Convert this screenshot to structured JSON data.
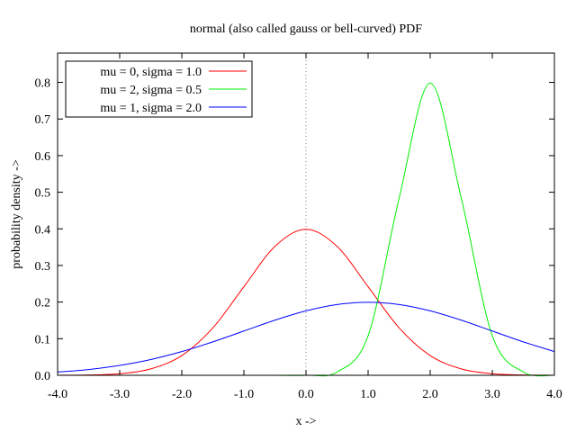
{
  "chart_data": {
    "type": "line",
    "title": "normal (also called gauss or bell-curved) PDF",
    "xlabel": "x ->",
    "ylabel": "probability density ->",
    "xlim": [
      -4.0,
      4.0
    ],
    "ylim": [
      0.0,
      0.88
    ],
    "xticks": [
      -4.0,
      -3.0,
      -2.0,
      -1.0,
      0.0,
      1.0,
      2.0,
      3.0,
      4.0
    ],
    "xtick_labels": [
      "-4.0",
      "-3.0",
      "-2.0",
      "-1.0",
      "0.0",
      "1.0",
      "2.0",
      "3.0",
      "4.0"
    ],
    "yticks": [
      0.0,
      0.1,
      0.2,
      0.3,
      0.4,
      0.5,
      0.6,
      0.7,
      0.8
    ],
    "ytick_labels": [
      "0.0",
      "0.1",
      "0.2",
      "0.3",
      "0.4",
      "0.5",
      "0.6",
      "0.7",
      "0.8"
    ],
    "grid": false,
    "legend_position": "top-left",
    "reference_line": {
      "x": 0.0,
      "style": "dotted",
      "color": "#808080"
    },
    "x": [
      -4.0,
      -3.5,
      -3.0,
      -2.5,
      -2.0,
      -1.5,
      -1.0,
      -0.5,
      0.0,
      0.5,
      1.0,
      1.5,
      2.0,
      2.5,
      3.0,
      3.5,
      4.0
    ],
    "series": [
      {
        "name": "mu = 0, sigma = 1.0",
        "color": "#ff0000",
        "values": [
          0.0001,
          0.0009,
          0.0044,
          0.0175,
          0.054,
          0.1295,
          0.242,
          0.3521,
          0.3989,
          0.3521,
          0.242,
          0.1295,
          0.054,
          0.0175,
          0.0044,
          0.0009,
          0.0001
        ]
      },
      {
        "name": "mu = 2, sigma = 0.5",
        "color": "#00ee00",
        "values": [
          0.0,
          0.0,
          0.0,
          0.0,
          0.0,
          0.0,
          0.0,
          0.0,
          0.0001,
          0.0089,
          0.108,
          0.4839,
          0.7979,
          0.4839,
          0.108,
          0.0089,
          0.0001
        ]
      },
      {
        "name": "mu = 1, sigma = 2.0",
        "color": "#0000ff",
        "values": [
          0.0088,
          0.0157,
          0.027,
          0.0431,
          0.0648,
          0.0913,
          0.121,
          0.1506,
          0.176,
          0.1933,
          0.1995,
          0.1933,
          0.176,
          0.1506,
          0.121,
          0.0913,
          0.0648
        ]
      }
    ]
  }
}
